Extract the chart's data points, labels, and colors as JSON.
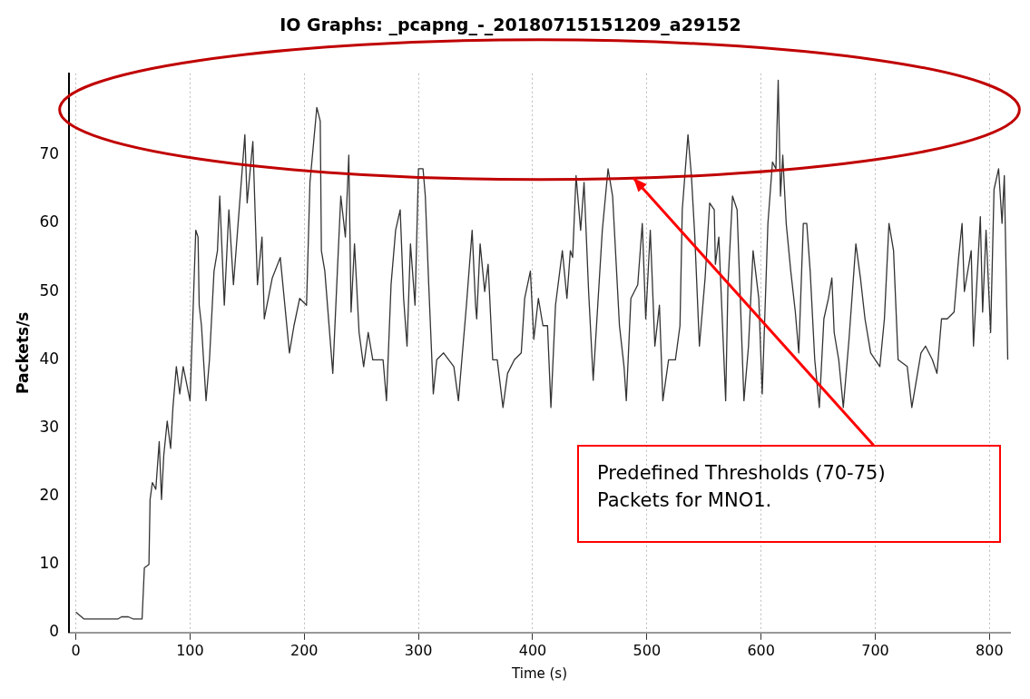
{
  "chart_data": {
    "type": "line",
    "title": "IO Graphs: _pcapng_-_20180715151209_a29152",
    "xlabel": "Time (s)",
    "ylabel": "Packets/s",
    "xlim": [
      -6,
      818
    ],
    "ylim": [
      0,
      82
    ],
    "xticks": [
      0,
      100,
      200,
      300,
      400,
      500,
      600,
      700,
      800
    ],
    "yticks": [
      0,
      10,
      20,
      30,
      40,
      50,
      60,
      70
    ],
    "grid": "x",
    "legend": false,
    "marker": "none",
    "line_style": "solid",
    "annotations": [
      "Predefined Thresholds (70-75)\nPackets for MNO1."
    ],
    "series": [
      {
        "color": "#333333",
        "x": [
          0,
          7,
          37,
          40,
          46,
          50,
          58,
          60,
          64,
          65,
          67,
          70,
          73,
          75,
          77,
          80,
          83,
          85,
          88,
          91,
          94,
          100,
          103,
          105,
          107,
          108,
          110,
          114,
          117,
          121,
          124,
          126,
          130,
          134,
          138,
          148,
          150,
          155,
          159,
          163,
          165,
          172,
          179,
          187,
          191,
          196,
          202,
          205,
          211,
          214,
          215,
          218,
          225,
          229,
          232,
          236,
          239,
          241,
          244,
          248,
          252,
          256,
          260,
          269,
          272,
          276,
          280,
          284,
          287,
          290,
          293,
          297,
          300,
          304,
          306,
          309,
          313,
          316,
          322,
          331,
          335,
          338,
          342,
          347,
          350,
          351,
          354,
          358,
          361,
          365,
          369,
          374,
          378,
          384,
          390,
          393,
          398,
          401,
          405,
          409,
          413,
          416,
          420,
          426,
          430,
          433,
          435,
          438,
          442,
          445,
          449,
          453,
          457,
          461,
          466,
          470,
          476,
          480,
          482,
          486,
          492,
          496,
          499,
          503,
          507,
          511,
          514,
          519,
          525,
          529,
          531,
          536,
          539,
          542,
          546,
          551,
          555,
          559,
          560,
          563,
          569,
          571,
          575,
          579,
          585,
          589,
          593,
          598,
          601,
          606,
          610,
          613,
          615,
          617,
          619,
          622,
          626,
          630,
          633,
          637,
          640,
          643,
          647,
          651,
          655,
          659,
          662,
          664,
          668,
          672,
          677,
          683,
          687,
          691,
          696,
          704,
          708,
          712,
          716,
          720,
          728,
          732,
          736,
          740,
          744,
          750,
          754,
          758,
          763,
          769,
          773,
          776,
          778,
          784,
          786,
          792,
          794,
          797,
          801,
          804,
          808,
          811,
          813,
          816
        ],
        "values": [
          3,
          2,
          2,
          2.3,
          2.3,
          2,
          2,
          9.5,
          10,
          19.5,
          22,
          21,
          28,
          19.5,
          26,
          31,
          27,
          33,
          39,
          35,
          39,
          34,
          49,
          59,
          58,
          48,
          45,
          34,
          40,
          53,
          56,
          64,
          48,
          62,
          51,
          73,
          63,
          72,
          51,
          58,
          46,
          52,
          55,
          41,
          45,
          49,
          48,
          66,
          77,
          75,
          56,
          53,
          38,
          53,
          64,
          58,
          70,
          47,
          57,
          44,
          39,
          44,
          40,
          40,
          34,
          51,
          59,
          62,
          49,
          42,
          57,
          48,
          68,
          68,
          64,
          51,
          35,
          40,
          41,
          39,
          34,
          40,
          48,
          59,
          48,
          46,
          57,
          50,
          54,
          40,
          40,
          33,
          38,
          40,
          41,
          49,
          53,
          43,
          49,
          45,
          45,
          33,
          48,
          56,
          49,
          56,
          55,
          67,
          59,
          66,
          50,
          37,
          48,
          59,
          68,
          64,
          45,
          39,
          34,
          49,
          51,
          60,
          46,
          59,
          42,
          48,
          34,
          40,
          40,
          45,
          62,
          73,
          67,
          58,
          42,
          52,
          63,
          62,
          54,
          58,
          34,
          51,
          64,
          62,
          34,
          42,
          56,
          49,
          35,
          60,
          69,
          68,
          81,
          64,
          70,
          60,
          53,
          47,
          41,
          60,
          60,
          53,
          40,
          33,
          46,
          49,
          52,
          44,
          40,
          33,
          43,
          57,
          52,
          46,
          41,
          39,
          46,
          60,
          56,
          40,
          39,
          33,
          37,
          41,
          42,
          40,
          38,
          46,
          46,
          47,
          55,
          60,
          50,
          56,
          42,
          61,
          47,
          59,
          44,
          65,
          68,
          60,
          67,
          40
        ]
      }
    ]
  }
}
